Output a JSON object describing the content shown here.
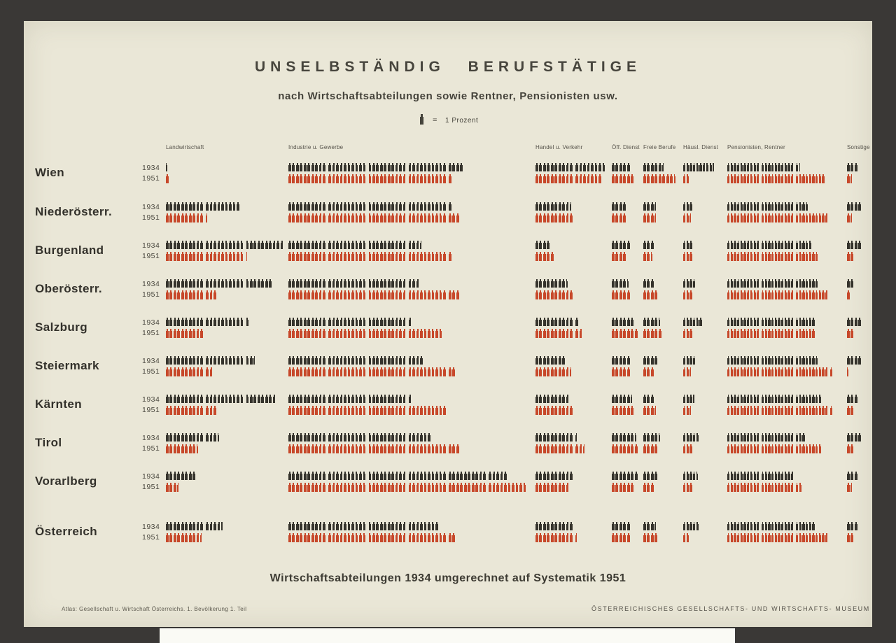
{
  "poster": {
    "title": "UNSELBSTÄNDIG BERUFSTÄTIGE",
    "subtitle": "nach Wirtschaftsabteilungen sowie Rentner, Pensionisten usw.",
    "legend": {
      "equals": "=",
      "label": "1 Prozent"
    },
    "bottom_note": "Wirtschaftsabteilungen 1934 umgerechnet auf Systematik 1951",
    "footer_left": "Atlas: Gesellschaft u. Wirtschaft Österreichs. 1. Bevölkerung 1. Teil",
    "footer_right": "ÖSTERREICHISCHES GESELLSCHAFTS- UND WIRTSCHAFTS- MUSEUM",
    "colors": {
      "paper": "#eae7d7",
      "frame": "#3a3836",
      "icon_1934": "#35332c",
      "icon_1951": "#c7482a"
    }
  },
  "chart_data": {
    "type": "pictogram",
    "title": "UNSELBSTÄNDIG BERUFSTÄTIGE nach Wirtschaftsabteilungen sowie Rentner, Pensionisten usw.",
    "unit": "1 Figur = 1 Prozent",
    "note": "Wirtschaftsabteilungen 1934 umgerechnet auf Systematik 1951",
    "years": [
      "1934",
      "1951"
    ],
    "columns": [
      "Landwirtschaft",
      "Industrie u. Gewerbe",
      "Handel u. Verkehr",
      "Öff. Dienst",
      "Freie Berufe",
      "Häusl. Dienst",
      "Pensionisten, Rentner",
      "Sonstige"
    ],
    "rows": [
      {
        "region": "Wien",
        "v1934": [
          0.5,
          44,
          18,
          5,
          5.5,
          9.5,
          21.5,
          3
        ],
        "v1951": [
          1,
          41,
          17,
          6,
          8.5,
          2,
          29,
          1.5
        ]
      },
      {
        "region": "Niederösterr.",
        "v1934": [
          19,
          41,
          9.5,
          4,
          3.5,
          3,
          24,
          4
        ],
        "v1951": [
          10.5,
          43,
          10,
          4,
          3.5,
          2.5,
          30,
          1.5
        ]
      },
      {
        "region": "Burgenland",
        "v1934": [
          30,
          33.5,
          4,
          5,
          3,
          3,
          25,
          4
        ],
        "v1951": [
          20.5,
          41,
          5,
          4,
          2.5,
          3,
          27,
          2
        ]
      },
      {
        "region": "Oberösterr.",
        "v1934": [
          27,
          33,
          8.5,
          4.5,
          3,
          4,
          27,
          2
        ],
        "v1951": [
          13,
          43,
          10,
          5,
          4,
          3,
          30,
          1
        ]
      },
      {
        "region": "Salzburg",
        "v1934": [
          21,
          31,
          11,
          6,
          4.5,
          6,
          26,
          4
        ],
        "v1951": [
          10,
          39,
          12,
          7,
          5,
          3,
          26,
          2
        ]
      },
      {
        "region": "Steiermark",
        "v1934": [
          22.5,
          34,
          8,
          5,
          4,
          4,
          27,
          4
        ],
        "v1951": [
          12,
          42,
          9.5,
          5,
          3,
          2.5,
          31,
          0.5
        ]
      },
      {
        "region": "Kärnten",
        "v1934": [
          28,
          31,
          9,
          5.5,
          3,
          3.5,
          28,
          3
        ],
        "v1951": [
          13,
          40,
          10,
          6,
          3.5,
          2.5,
          31,
          2
        ]
      },
      {
        "region": "Tirol",
        "v1934": [
          13.5,
          36,
          10.5,
          6.5,
          4.5,
          5,
          23,
          4
        ],
        "v1951": [
          8.5,
          43,
          12.5,
          7,
          4,
          3,
          28,
          2
        ]
      },
      {
        "region": "Vorarlberg",
        "v1934": [
          8,
          55,
          10,
          7,
          4,
          4.5,
          20,
          3
        ],
        "v1951": [
          3.5,
          60,
          9,
          6,
          3,
          3,
          22,
          1.5
        ]
      },
      {
        "region": "Österreich",
        "v1934": [
          14.5,
          38,
          10,
          5,
          3.5,
          5,
          26,
          3
        ],
        "v1951": [
          9.5,
          42,
          10.5,
          5,
          4,
          2,
          30,
          2
        ]
      }
    ]
  }
}
